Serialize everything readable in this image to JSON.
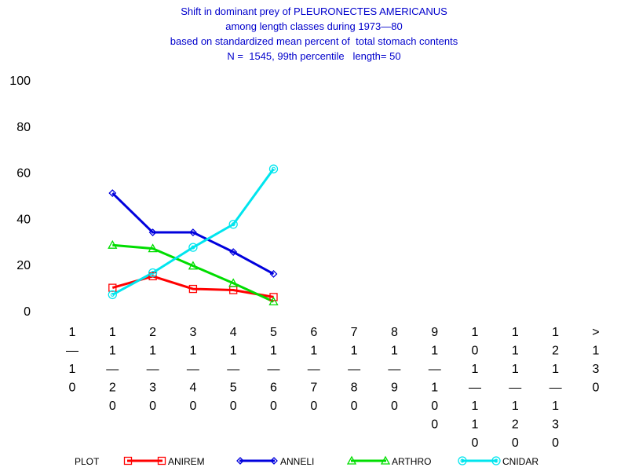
{
  "chart_data": {
    "type": "line",
    "title": [
      "Shift in dominant prey of PLEURONECTES AMERICANUS",
      "among length classes during 1973—80",
      "based on standardized mean percent of  total stomach contents",
      "N =  1545, 99th percentile   length= 50"
    ],
    "xlabel": "",
    "ylabel": "",
    "ylim": [
      0,
      100
    ],
    "yticks": [
      "0",
      "20",
      "40",
      "60",
      "80",
      "100"
    ],
    "categories": [
      "1—10",
      "11—20",
      "21—30",
      "31—40",
      "41—50",
      "51—60",
      "61—70",
      "71—80",
      "81—90",
      "91—100",
      "101—110",
      "111—120",
      "121—130",
      ">130"
    ],
    "category_lines": [
      [
        "1",
        "—",
        "1",
        "0"
      ],
      [
        "1",
        "1",
        "—",
        "2",
        "0"
      ],
      [
        "2",
        "1",
        "—",
        "3",
        "0"
      ],
      [
        "3",
        "1",
        "—",
        "4",
        "0"
      ],
      [
        "4",
        "1",
        "—",
        "5",
        "0"
      ],
      [
        "5",
        "1",
        "—",
        "6",
        "0"
      ],
      [
        "6",
        "1",
        "—",
        "7",
        "0"
      ],
      [
        "7",
        "1",
        "—",
        "8",
        "0"
      ],
      [
        "8",
        "1",
        "—",
        "9",
        "0"
      ],
      [
        "9",
        "1",
        "—",
        "1",
        "0",
        "0"
      ],
      [
        "1",
        "0",
        "1",
        "—",
        "1",
        "1",
        "0"
      ],
      [
        "1",
        "1",
        "1",
        "—",
        "1",
        "2",
        "0"
      ],
      [
        "1",
        "2",
        "1",
        "—",
        "1",
        "3",
        "0"
      ],
      [
        ">",
        "1",
        "3",
        "0"
      ]
    ],
    "legend_title": "PLOT",
    "legend_placement": "bottom",
    "grid": false,
    "series": [
      {
        "name": "ANIREM",
        "color": "#ff0000",
        "marker": "square",
        "values": [
          null,
          10,
          15,
          9.5,
          9,
          6,
          null,
          null,
          null,
          null,
          null,
          null,
          null,
          null
        ]
      },
      {
        "name": "ANNELI",
        "color": "#0000dd",
        "marker": "diamond",
        "values": [
          null,
          51,
          34,
          34,
          25.5,
          16,
          null,
          null,
          null,
          null,
          null,
          null,
          null,
          null
        ]
      },
      {
        "name": "ARTHRO",
        "color": "#00dd00",
        "marker": "triangle",
        "values": [
          null,
          28.5,
          27,
          19.5,
          12,
          4,
          null,
          null,
          null,
          null,
          null,
          null,
          null,
          null
        ]
      },
      {
        "name": "CNIDAR",
        "color": "#00e5ee",
        "marker": "circle",
        "values": [
          null,
          7,
          16.5,
          27.5,
          37.5,
          61.5,
          null,
          null,
          null,
          null,
          null,
          null,
          null,
          null
        ]
      }
    ]
  }
}
